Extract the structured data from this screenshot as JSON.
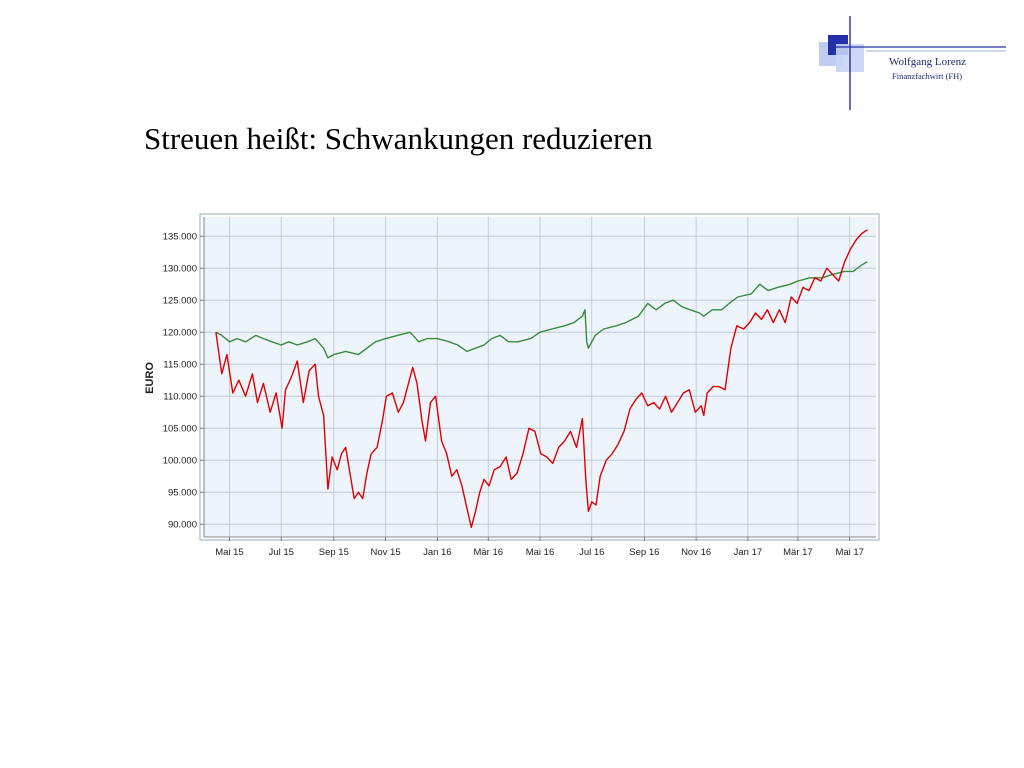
{
  "slide": {
    "title": "Streuen heißt: Schwankungen reduzieren",
    "logo": {
      "name": "Wolfgang Lorenz",
      "subtitle": "Finanzfachwirt (FH)",
      "color_dark": "#2430a8",
      "color_light": "#b9c7f0"
    }
  },
  "chart_data": {
    "type": "line",
    "title": "",
    "xlabel": "",
    "ylabel": "EURO",
    "x_ticks": [
      "Mai 15",
      "Jul 15",
      "Sep 15",
      "Nov 15",
      "Jan 16",
      "Mär 16",
      "Mai 16",
      "Jul 16",
      "Sep 16",
      "Nov 16",
      "Jan 17",
      "Mär 17",
      "Mai 17"
    ],
    "y_ticks": [
      "90.000",
      "95.000",
      "100.000",
      "105.000",
      "110.000",
      "115.000",
      "120.000",
      "125.000",
      "130.000",
      "135.000"
    ],
    "ylim": [
      88000,
      138000
    ],
    "grid": true,
    "legend": "none",
    "plot_background": "#eef4fc",
    "series": [
      {
        "color": "#e00000",
        "values": [
          [
            "2015-04-15",
            120000
          ],
          [
            "2015-04-22",
            113500
          ],
          [
            "2015-04-28",
            116500
          ],
          [
            "2015-05-05",
            110500
          ],
          [
            "2015-05-12",
            112500
          ],
          [
            "2015-05-20",
            110000
          ],
          [
            "2015-05-28",
            113500
          ],
          [
            "2015-06-03",
            109000
          ],
          [
            "2015-06-10",
            112000
          ],
          [
            "2015-06-18",
            107500
          ],
          [
            "2015-06-25",
            110500
          ],
          [
            "2015-07-02",
            105000
          ],
          [
            "2015-07-06",
            111000
          ],
          [
            "2015-07-13",
            113000
          ],
          [
            "2015-07-20",
            115500
          ],
          [
            "2015-07-27",
            109000
          ],
          [
            "2015-08-03",
            114000
          ],
          [
            "2015-08-10",
            115000
          ],
          [
            "2015-08-14",
            110000
          ],
          [
            "2015-08-20",
            107000
          ],
          [
            "2015-08-25",
            95500
          ],
          [
            "2015-08-30",
            100500
          ],
          [
            "2015-09-05",
            98500
          ],
          [
            "2015-09-10",
            101000
          ],
          [
            "2015-09-15",
            102000
          ],
          [
            "2015-09-20",
            98000
          ],
          [
            "2015-09-25",
            94000
          ],
          [
            "2015-09-30",
            95000
          ],
          [
            "2015-10-05",
            94000
          ],
          [
            "2015-10-10",
            98000
          ],
          [
            "2015-10-15",
            101000
          ],
          [
            "2015-10-22",
            102000
          ],
          [
            "2015-10-28",
            106000
          ],
          [
            "2015-11-02",
            110000
          ],
          [
            "2015-11-09",
            110500
          ],
          [
            "2015-11-16",
            107500
          ],
          [
            "2015-11-22",
            109000
          ],
          [
            "2015-11-28",
            112000
          ],
          [
            "2015-12-03",
            114500
          ],
          [
            "2015-12-08",
            112000
          ],
          [
            "2015-12-14",
            106000
          ],
          [
            "2015-12-18",
            103000
          ],
          [
            "2015-12-24",
            109000
          ],
          [
            "2015-12-30",
            110000
          ],
          [
            "2016-01-06",
            103000
          ],
          [
            "2016-01-12",
            101000
          ],
          [
            "2016-01-18",
            97500
          ],
          [
            "2016-01-24",
            98500
          ],
          [
            "2016-01-30",
            96000
          ],
          [
            "2016-02-04",
            93000
          ],
          [
            "2016-02-10",
            89500
          ],
          [
            "2016-02-15",
            92000
          ],
          [
            "2016-02-20",
            95000
          ],
          [
            "2016-02-25",
            97000
          ],
          [
            "2016-03-02",
            96000
          ],
          [
            "2016-03-08",
            98500
          ],
          [
            "2016-03-15",
            99000
          ],
          [
            "2016-03-22",
            100500
          ],
          [
            "2016-03-28",
            97000
          ],
          [
            "2016-04-04",
            98000
          ],
          [
            "2016-04-11",
            101000
          ],
          [
            "2016-04-18",
            105000
          ],
          [
            "2016-04-25",
            104500
          ],
          [
            "2016-05-02",
            101000
          ],
          [
            "2016-05-09",
            100500
          ],
          [
            "2016-05-16",
            99500
          ],
          [
            "2016-05-23",
            102000
          ],
          [
            "2016-05-30",
            103000
          ],
          [
            "2016-06-06",
            104500
          ],
          [
            "2016-06-13",
            102000
          ],
          [
            "2016-06-20",
            106500
          ],
          [
            "2016-06-24",
            97000
          ],
          [
            "2016-06-27",
            92000
          ],
          [
            "2016-07-01",
            93500
          ],
          [
            "2016-07-06",
            93000
          ],
          [
            "2016-07-11",
            97500
          ],
          [
            "2016-07-18",
            100000
          ],
          [
            "2016-07-25",
            101000
          ],
          [
            "2016-08-01",
            102500
          ],
          [
            "2016-08-08",
            104500
          ],
          [
            "2016-08-15",
            108000
          ],
          [
            "2016-08-22",
            109500
          ],
          [
            "2016-08-29",
            110500
          ],
          [
            "2016-09-05",
            108500
          ],
          [
            "2016-09-12",
            109000
          ],
          [
            "2016-09-19",
            108000
          ],
          [
            "2016-09-26",
            110000
          ],
          [
            "2016-10-03",
            107500
          ],
          [
            "2016-10-10",
            109000
          ],
          [
            "2016-10-17",
            110500
          ],
          [
            "2016-10-24",
            111000
          ],
          [
            "2016-10-31",
            107500
          ],
          [
            "2016-11-07",
            108500
          ],
          [
            "2016-11-10",
            107000
          ],
          [
            "2016-11-14",
            110500
          ],
          [
            "2016-11-21",
            111500
          ],
          [
            "2016-11-28",
            111500
          ],
          [
            "2016-12-05",
            111000
          ],
          [
            "2016-12-12",
            117500
          ],
          [
            "2016-12-19",
            121000
          ],
          [
            "2016-12-27",
            120500
          ],
          [
            "2017-01-03",
            121500
          ],
          [
            "2017-01-10",
            123000
          ],
          [
            "2017-01-17",
            122000
          ],
          [
            "2017-01-24",
            123500
          ],
          [
            "2017-01-31",
            121500
          ],
          [
            "2017-02-07",
            123500
          ],
          [
            "2017-02-14",
            121500
          ],
          [
            "2017-02-21",
            125500
          ],
          [
            "2017-02-28",
            124500
          ],
          [
            "2017-03-07",
            127000
          ],
          [
            "2017-03-14",
            126500
          ],
          [
            "2017-03-21",
            128500
          ],
          [
            "2017-03-28",
            128000
          ],
          [
            "2017-04-04",
            130000
          ],
          [
            "2017-04-11",
            129000
          ],
          [
            "2017-04-18",
            128000
          ],
          [
            "2017-04-25",
            131000
          ],
          [
            "2017-05-02",
            133000
          ],
          [
            "2017-05-09",
            134500
          ],
          [
            "2017-05-16",
            135500
          ],
          [
            "2017-05-22",
            136000
          ]
        ]
      },
      {
        "color": "#3a8a3a",
        "values": [
          [
            "2015-04-15",
            120000
          ],
          [
            "2015-04-22",
            119500
          ],
          [
            "2015-05-01",
            118500
          ],
          [
            "2015-05-10",
            119000
          ],
          [
            "2015-05-20",
            118500
          ],
          [
            "2015-06-01",
            119500
          ],
          [
            "2015-06-10",
            119000
          ],
          [
            "2015-06-20",
            118500
          ],
          [
            "2015-07-01",
            118000
          ],
          [
            "2015-07-10",
            118500
          ],
          [
            "2015-07-20",
            118000
          ],
          [
            "2015-08-01",
            118500
          ],
          [
            "2015-08-10",
            119000
          ],
          [
            "2015-08-20",
            117500
          ],
          [
            "2015-08-25",
            116000
          ],
          [
            "2015-09-01",
            116500
          ],
          [
            "2015-09-15",
            117000
          ],
          [
            "2015-09-30",
            116500
          ],
          [
            "2015-10-10",
            117500
          ],
          [
            "2015-10-20",
            118500
          ],
          [
            "2015-11-01",
            119000
          ],
          [
            "2015-11-15",
            119500
          ],
          [
            "2015-11-30",
            120000
          ],
          [
            "2015-12-10",
            118500
          ],
          [
            "2015-12-20",
            119000
          ],
          [
            "2016-01-01",
            119000
          ],
          [
            "2016-01-15",
            118500
          ],
          [
            "2016-01-25",
            118000
          ],
          [
            "2016-02-05",
            117000
          ],
          [
            "2016-02-15",
            117500
          ],
          [
            "2016-02-25",
            118000
          ],
          [
            "2016-03-05",
            119000
          ],
          [
            "2016-03-15",
            119500
          ],
          [
            "2016-03-25",
            118500
          ],
          [
            "2016-04-05",
            118500
          ],
          [
            "2016-04-20",
            119000
          ],
          [
            "2016-05-01",
            120000
          ],
          [
            "2016-05-15",
            120500
          ],
          [
            "2016-05-30",
            121000
          ],
          [
            "2016-06-10",
            121500
          ],
          [
            "2016-06-20",
            122500
          ],
          [
            "2016-06-23",
            123500
          ],
          [
            "2016-06-25",
            118500
          ],
          [
            "2016-06-27",
            117500
          ],
          [
            "2016-07-05",
            119500
          ],
          [
            "2016-07-15",
            120500
          ],
          [
            "2016-07-30",
            121000
          ],
          [
            "2016-08-10",
            121500
          ],
          [
            "2016-08-25",
            122500
          ],
          [
            "2016-09-05",
            124500
          ],
          [
            "2016-09-15",
            123500
          ],
          [
            "2016-09-25",
            124500
          ],
          [
            "2016-10-05",
            125000
          ],
          [
            "2016-10-15",
            124000
          ],
          [
            "2016-10-25",
            123500
          ],
          [
            "2016-11-05",
            123000
          ],
          [
            "2016-11-10",
            122500
          ],
          [
            "2016-11-20",
            123500
          ],
          [
            "2016-12-01",
            123500
          ],
          [
            "2016-12-10",
            124500
          ],
          [
            "2016-12-20",
            125500
          ],
          [
            "2017-01-05",
            126000
          ],
          [
            "2017-01-15",
            127500
          ],
          [
            "2017-01-25",
            126500
          ],
          [
            "2017-02-05",
            127000
          ],
          [
            "2017-02-20",
            127500
          ],
          [
            "2017-03-01",
            128000
          ],
          [
            "2017-03-15",
            128500
          ],
          [
            "2017-03-30",
            128500
          ],
          [
            "2017-04-10",
            129000
          ],
          [
            "2017-04-25",
            129500
          ],
          [
            "2017-05-05",
            129500
          ],
          [
            "2017-05-15",
            130500
          ],
          [
            "2017-05-22",
            131000
          ]
        ]
      }
    ]
  }
}
